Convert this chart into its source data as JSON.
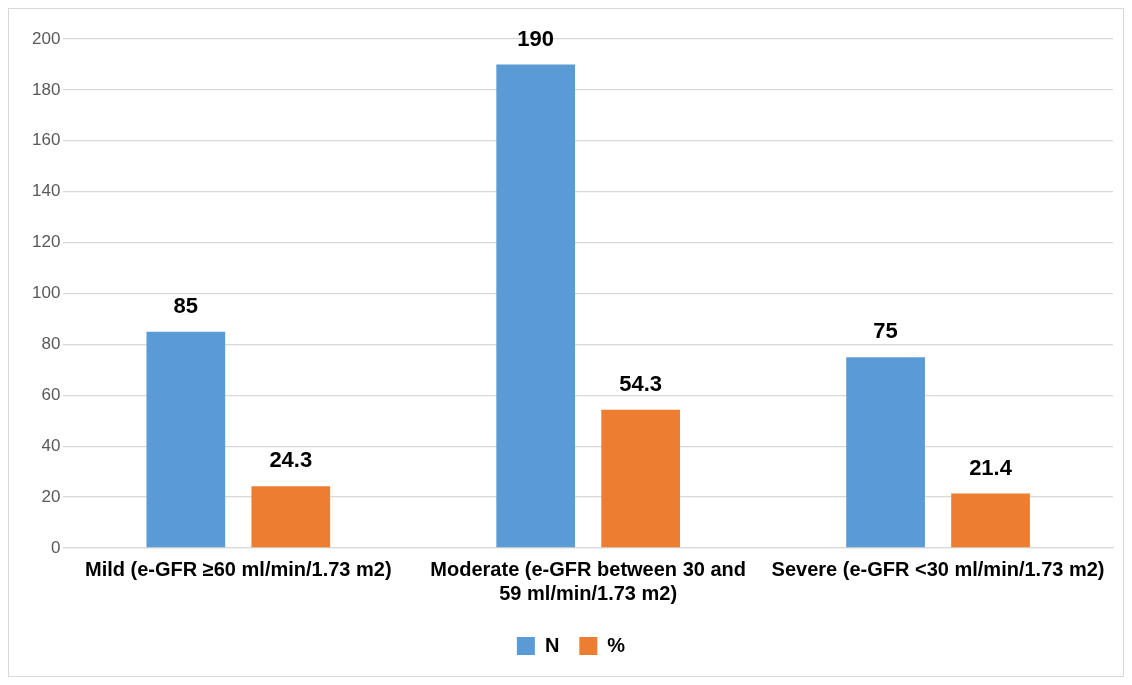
{
  "chart_data": {
    "type": "bar",
    "categories": [
      "Mild (e-GFR ≥60 ml/min/1.73 m2)",
      "Moderate (e-GFR between 30 and 59 ml/min/1.73 m2)",
      "Severe (e-GFR <30 ml/min/1.73 m2)"
    ],
    "series": [
      {
        "name": "N",
        "color": "#5b9bd5",
        "values": [
          85,
          190,
          75
        ]
      },
      {
        "name": "%",
        "color": "#ed7d31",
        "values": [
          24.3,
          54.3,
          21.4
        ]
      }
    ],
    "ylim": [
      0,
      200
    ],
    "yticks": [
      0,
      20,
      40,
      60,
      80,
      100,
      120,
      140,
      160,
      180,
      200
    ],
    "grid": "y",
    "legend": "bottom",
    "data_labels": true
  }
}
